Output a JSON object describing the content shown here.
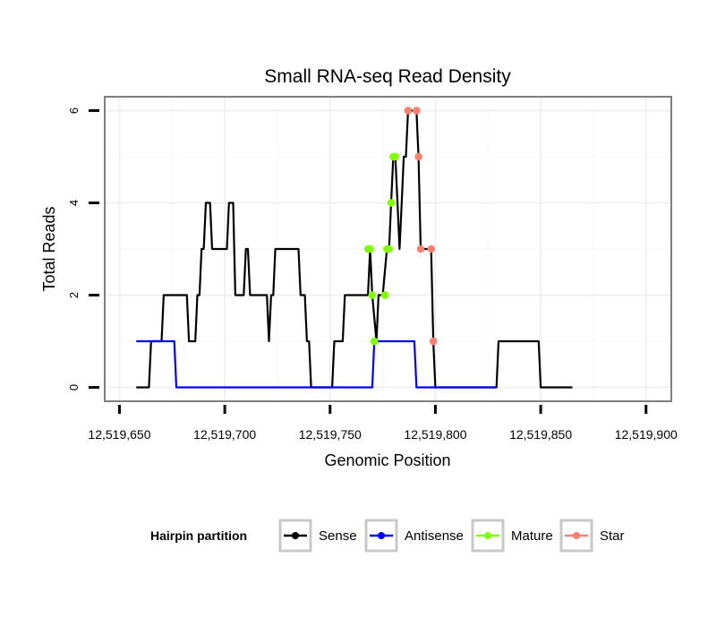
{
  "chart_data": {
    "type": "line",
    "title": "Small RNA-seq Read Density",
    "xlabel": "Genomic Position",
    "ylabel": "Total Reads",
    "xlim": [
      12519643,
      12519912
    ],
    "ylim": [
      -0.3,
      6.3
    ],
    "x_ticks": [
      12519650,
      12519700,
      12519750,
      12519800,
      12519850,
      12519900
    ],
    "x_tick_labels": [
      "12,519,650",
      "12,519,700",
      "12,519,750",
      "12,519,800",
      "12,519,850",
      "12,519,900"
    ],
    "y_ticks": [
      0,
      2,
      4,
      6
    ],
    "y_tick_labels": [
      "0",
      "2",
      "4",
      "6"
    ],
    "grid": true,
    "legend": {
      "title": "Hairpin partition",
      "placement": "bottom",
      "entries": [
        "Sense",
        "Antisense",
        "Mature",
        "Star"
      ]
    },
    "series": [
      {
        "name": "Sense",
        "color": "#000000",
        "points": [
          [
            12519658,
            0
          ],
          [
            12519664,
            0
          ],
          [
            12519665,
            1
          ],
          [
            12519670,
            1
          ],
          [
            12519671,
            2
          ],
          [
            12519682,
            2
          ],
          [
            12519683,
            1
          ],
          [
            12519686,
            1
          ],
          [
            12519687,
            2
          ],
          [
            12519688,
            2
          ],
          [
            12519689,
            3
          ],
          [
            12519690,
            3
          ],
          [
            12519691,
            4
          ],
          [
            12519693,
            4
          ],
          [
            12519694,
            3
          ],
          [
            12519701,
            3
          ],
          [
            12519702,
            4
          ],
          [
            12519704,
            4
          ],
          [
            12519705,
            2
          ],
          [
            12519709,
            2
          ],
          [
            12519710,
            3
          ],
          [
            12519711,
            3
          ],
          [
            12519712,
            2
          ],
          [
            12519720,
            2
          ],
          [
            12519721,
            1
          ],
          [
            12519722,
            2
          ],
          [
            12519723,
            2
          ],
          [
            12519724,
            3
          ],
          [
            12519735,
            3
          ],
          [
            12519736,
            2
          ],
          [
            12519738,
            2
          ],
          [
            12519739,
            1
          ],
          [
            12519740,
            1
          ],
          [
            12519741,
            0
          ],
          [
            12519751,
            0
          ],
          [
            12519752,
            1
          ],
          [
            12519756,
            1
          ],
          [
            12519757,
            2
          ],
          [
            12519768,
            2
          ],
          [
            12519769,
            3
          ],
          [
            12519770,
            2
          ],
          [
            12519772,
            1
          ],
          [
            12519773,
            2
          ],
          [
            12519775,
            2
          ],
          [
            12519777,
            3
          ],
          [
            12519778,
            3
          ],
          [
            12519779,
            4
          ],
          [
            12519780,
            5
          ],
          [
            12519781,
            5
          ],
          [
            12519782,
            4
          ],
          [
            12519783,
            3
          ],
          [
            12519784,
            4
          ],
          [
            12519785,
            5
          ],
          [
            12519786,
            5
          ],
          [
            12519787,
            6
          ],
          [
            12519791,
            6
          ],
          [
            12519792,
            5
          ],
          [
            12519793,
            3
          ],
          [
            12519798,
            3
          ],
          [
            12519799,
            1
          ],
          [
            12519800,
            0
          ],
          [
            12519829,
            0
          ],
          [
            12519830,
            1
          ],
          [
            12519849,
            1
          ],
          [
            12519850,
            0
          ],
          [
            12519865,
            0
          ]
        ]
      },
      {
        "name": "Antisense",
        "color": "#0000ff",
        "points": [
          [
            12519658,
            1
          ],
          [
            12519676,
            1
          ],
          [
            12519677,
            0
          ],
          [
            12519770,
            0
          ],
          [
            12519771,
            1
          ],
          [
            12519790,
            1
          ],
          [
            12519791,
            0
          ],
          [
            12519829,
            0
          ]
        ]
      },
      {
        "name": "Mature",
        "color": "#7fff00",
        "points": [
          [
            12519768,
            3
          ],
          [
            12519769,
            3
          ],
          [
            12519770,
            2
          ],
          [
            12519776,
            2
          ],
          [
            12519777,
            3
          ],
          [
            12519778,
            3
          ],
          [
            12519779,
            4
          ],
          [
            12519780,
            5
          ],
          [
            12519781,
            5
          ],
          [
            12519771,
            1
          ]
        ]
      },
      {
        "name": "Star",
        "color": "#fa8072",
        "points": [
          [
            12519787,
            6
          ],
          [
            12519791,
            6
          ],
          [
            12519792,
            5
          ],
          [
            12519793,
            3
          ],
          [
            12519798,
            3
          ],
          [
            12519799,
            1
          ]
        ]
      }
    ]
  }
}
